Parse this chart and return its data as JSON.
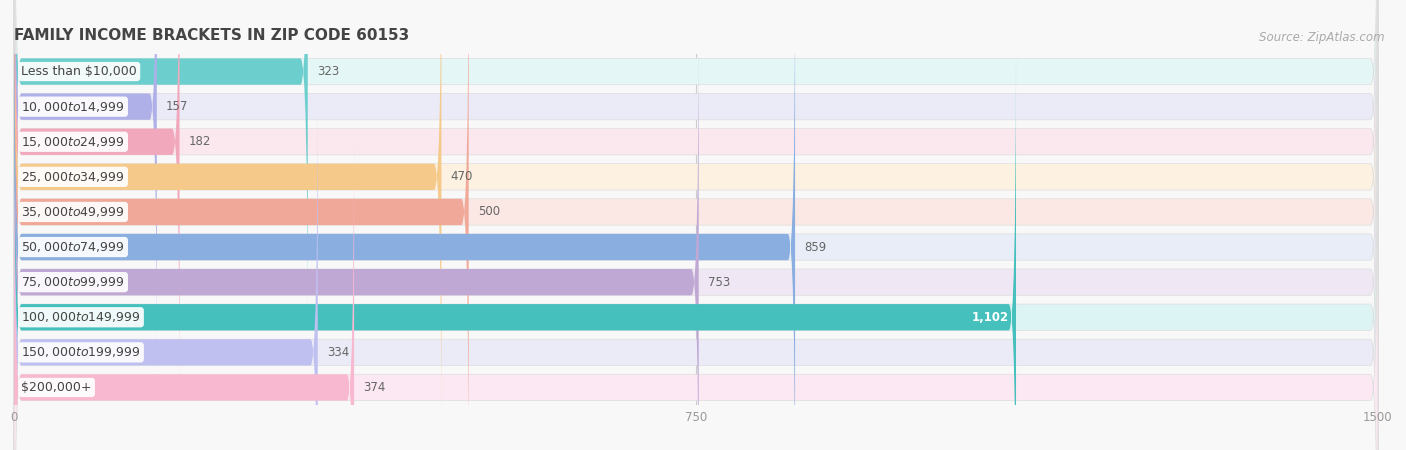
{
  "title": "FAMILY INCOME BRACKETS IN ZIP CODE 60153",
  "source": "Source: ZipAtlas.com",
  "categories": [
    "Less than $10,000",
    "$10,000 to $14,999",
    "$15,000 to $24,999",
    "$25,000 to $34,999",
    "$35,000 to $49,999",
    "$50,000 to $74,999",
    "$75,000 to $99,999",
    "$100,000 to $149,999",
    "$150,000 to $199,999",
    "$200,000+"
  ],
  "values": [
    323,
    157,
    182,
    470,
    500,
    859,
    753,
    1102,
    334,
    374
  ],
  "bar_colors": [
    "#6dcece",
    "#b0b0e8",
    "#f2a8bc",
    "#f5c98a",
    "#f0a898",
    "#8aaee0",
    "#c0a8d4",
    "#45c0bc",
    "#c0c0f0",
    "#f8b8d0"
  ],
  "bar_bg_colors": [
    "#e4f6f6",
    "#ebebf8",
    "#fbe8ef",
    "#fdf2e2",
    "#fbe8e4",
    "#e8edf8",
    "#efe8f4",
    "#ddf4f4",
    "#ebebf8",
    "#fbe8f2"
  ],
  "xlim_max": 1500,
  "xticks": [
    0,
    750,
    1500
  ],
  "bg_color": "#f8f8f8",
  "title_fontsize": 11,
  "source_fontsize": 8.5,
  "label_fontsize": 9,
  "value_fontsize": 8.5,
  "bar_height": 0.75,
  "value_inside_bar": [
    1102
  ],
  "value_inside_color": "#ffffff"
}
